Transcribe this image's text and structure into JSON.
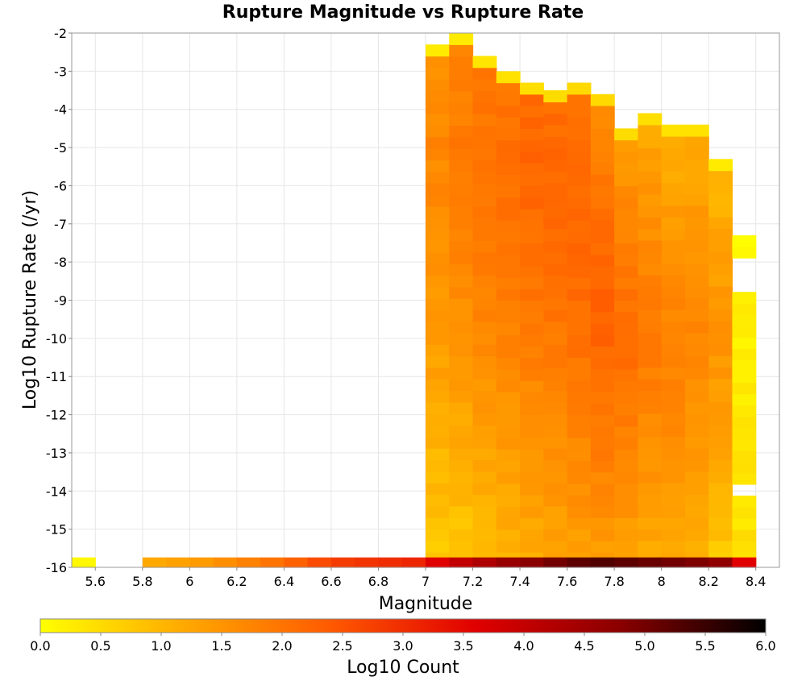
{
  "chart_data": {
    "type": "heatmap",
    "title": "Rupture Magnitude vs Rupture Rate",
    "xlabel": "Magnitude",
    "ylabel": "Log10 Rupture Rate (/yr)",
    "xlim": [
      5.5,
      8.5
    ],
    "ylim": [
      -16,
      -2
    ],
    "x_ticks": [
      "5.6",
      "5.8",
      "6",
      "6.2",
      "6.4",
      "6.6",
      "6.8",
      "7",
      "7.2",
      "7.4",
      "7.6",
      "7.8",
      "8",
      "8.2",
      "8.4"
    ],
    "y_ticks": [
      "-2",
      "-3",
      "-4",
      "-5",
      "-6",
      "-7",
      "-8",
      "-9",
      "-10",
      "-11",
      "-12",
      "-13",
      "-14",
      "-15",
      "-16"
    ],
    "grid": true,
    "colorbar": {
      "label": "Log10 Count",
      "range": [
        0,
        6
      ],
      "ticks": [
        "0.0",
        "0.5",
        "1.0",
        "1.5",
        "2.0",
        "2.5",
        "3.0",
        "3.5",
        "4.0",
        "4.5",
        "5.0",
        "5.5",
        "6.0"
      ],
      "colormap": [
        "#ffff00",
        "#ffa800",
        "#ff5a00",
        "#e00000",
        "#8a0000",
        "#000000"
      ],
      "placement": "bottom"
    },
    "bin_width": {
      "magnitude": 0.1,
      "log_rate": 0.3
    },
    "bottom_row": {
      "log_rate": -16,
      "magnitudes": [
        5.55,
        5.85,
        5.95,
        6.05,
        6.15,
        6.25,
        6.35,
        6.45,
        6.55,
        6.65,
        6.75,
        6.85,
        6.95,
        7.05,
        7.15,
        7.25,
        7.35,
        7.45,
        7.55,
        7.65,
        7.75,
        7.85,
        7.95,
        8.05,
        8.15,
        8.25,
        8.35
      ],
      "log_counts": [
        0.1,
        1.2,
        1.3,
        1.4,
        1.6,
        1.8,
        2.0,
        2.3,
        2.6,
        2.8,
        2.9,
        3.0,
        3.1,
        3.6,
        4.0,
        4.3,
        4.6,
        4.8,
        5.0,
        5.2,
        5.3,
        5.2,
        5.1,
        5.0,
        4.9,
        4.7,
        3.6
      ]
    },
    "columns": [
      {
        "magnitude": 7.05,
        "rate_range": [
          -15.9,
          -2.3
        ],
        "peak": -5.0,
        "peak_value": 1.7,
        "edge_value": 0.7
      },
      {
        "magnitude": 7.15,
        "rate_range": [
          -15.9,
          -2.0
        ],
        "peak": -5.0,
        "peak_value": 1.9,
        "edge_value": 0.7
      },
      {
        "magnitude": 7.25,
        "rate_range": [
          -15.9,
          -2.6
        ],
        "peak": -5.2,
        "peak_value": 2.0,
        "edge_value": 0.9
      },
      {
        "magnitude": 7.35,
        "rate_range": [
          -15.9,
          -3.0
        ],
        "peak": -5.3,
        "peak_value": 2.1,
        "edge_value": 1.0
      },
      {
        "magnitude": 7.45,
        "rate_range": [
          -15.9,
          -3.3
        ],
        "peak": -5.5,
        "peak_value": 2.2,
        "edge_value": 1.1
      },
      {
        "magnitude": 7.55,
        "rate_range": [
          -15.9,
          -3.5
        ],
        "peak": -6.0,
        "peak_value": 2.2,
        "edge_value": 1.2
      },
      {
        "magnitude": 7.65,
        "rate_range": [
          -15.9,
          -3.3
        ],
        "peak": -7.5,
        "peak_value": 2.2,
        "edge_value": 1.3
      },
      {
        "magnitude": 7.75,
        "rate_range": [
          -15.9,
          -3.6
        ],
        "peak": -9.0,
        "peak_value": 2.3,
        "edge_value": 1.3
      },
      {
        "magnitude": 7.85,
        "rate_range": [
          -15.9,
          -4.5
        ],
        "peak": -10.0,
        "peak_value": 2.1,
        "edge_value": 1.2
      },
      {
        "magnitude": 7.95,
        "rate_range": [
          -15.9,
          -4.1
        ],
        "peak": -10.0,
        "peak_value": 1.9,
        "edge_value": 1.1
      },
      {
        "magnitude": 8.05,
        "rate_range": [
          -15.9,
          -4.4
        ],
        "peak": -10.5,
        "peak_value": 1.8,
        "edge_value": 1.0
      },
      {
        "magnitude": 8.15,
        "rate_range": [
          -15.9,
          -4.4
        ],
        "peak": -10.0,
        "peak_value": 1.7,
        "edge_value": 1.0
      },
      {
        "magnitude": 8.25,
        "rate_range": [
          -15.9,
          -5.3
        ],
        "peak": -10.0,
        "peak_value": 1.5,
        "edge_value": 0.7
      },
      {
        "magnitude": 8.35,
        "rate_range": [
          -15.9,
          -7.3
        ],
        "peak": -15.5,
        "peak_value": 0.4,
        "edge_value": 0.1,
        "gaps": [
          [
            -8.2,
            -7.8
          ],
          [
            -8.7,
            -8.3
          ],
          [
            -11.3,
            -11.1
          ],
          [
            -14.0,
            -13.9
          ],
          [
            -15.3,
            -15.2
          ]
        ]
      }
    ]
  }
}
